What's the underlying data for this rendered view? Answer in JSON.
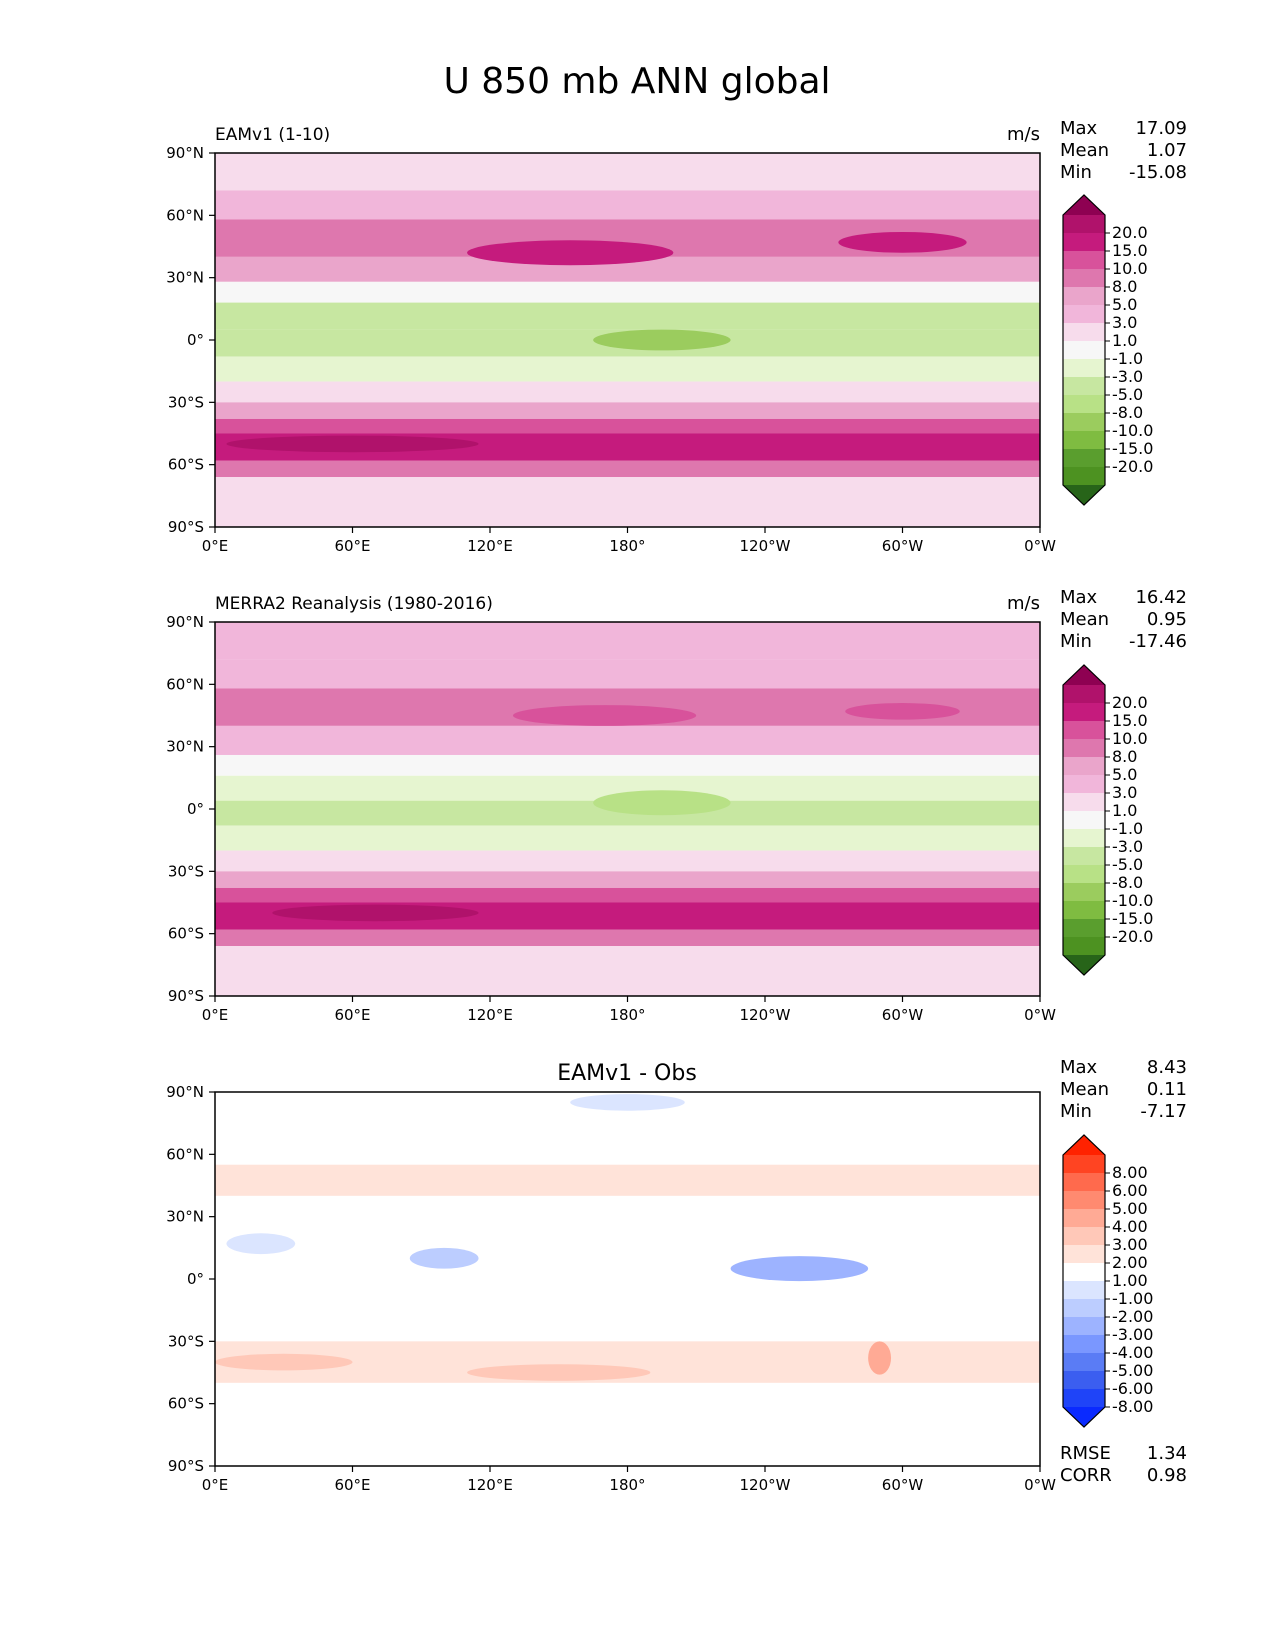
{
  "chart_data": {
    "type": "heatmap",
    "title": "U 850 mb ANN global",
    "x_ticks": [
      "0°E",
      "60°E",
      "120°E",
      "180°",
      "120°W",
      "60°W",
      "0°W"
    ],
    "y_ticks": [
      "90°N",
      "60°N",
      "30°N",
      "0°",
      "30°S",
      "60°S",
      "90°S"
    ],
    "xlim": [
      0,
      360
    ],
    "ylim": [
      -90,
      90
    ],
    "panels": [
      {
        "id": "model",
        "title": "EAMv1 (1-10)",
        "units": "m/s",
        "stats": [
          {
            "label": "Max",
            "value": "17.09"
          },
          {
            "label": "Mean",
            "value": "1.07"
          },
          {
            "label": "Min",
            "value": "-15.08"
          }
        ],
        "colorbar": {
          "levels": [
            "20.0",
            "15.0",
            "10.0",
            "8.0",
            "5.0",
            "3.0",
            "1.0",
            "-1.0",
            "-3.0",
            "-5.0",
            "-8.0",
            "-10.0",
            "-15.0",
            "-20.0"
          ],
          "colors": [
            "#8e0152",
            "#b0126b",
            "#c51b7d",
            "#d8529b",
            "#de77ae",
            "#eaa5cb",
            "#f1b6da",
            "#f7dcec",
            "#f7f7f7",
            "#e6f5d0",
            "#c7e7a1",
            "#b8e186",
            "#9bcc5e",
            "#7fbc41",
            "#5a9e2e",
            "#4d9221",
            "#276419"
          ]
        },
        "bands": [
          {
            "lat": [
              90,
              72
            ],
            "value": 0.5
          },
          {
            "lat": [
              72,
              58
            ],
            "value": 2
          },
          {
            "lat": [
              58,
              40
            ],
            "value": 6
          },
          {
            "lat": [
              40,
              28
            ],
            "value": 3
          },
          {
            "lat": [
              28,
              18
            ],
            "value": -2
          },
          {
            "lat": [
              18,
              5
            ],
            "value": -6
          },
          {
            "lat": [
              5,
              -8
            ],
            "value": -8
          },
          {
            "lat": [
              -8,
              -20
            ],
            "value": -5
          },
          {
            "lat": [
              -20,
              -30
            ],
            "value": -1
          },
          {
            "lat": [
              -30,
              -38
            ],
            "value": 4
          },
          {
            "lat": [
              -38,
              -45
            ],
            "value": 9
          },
          {
            "lat": [
              -45,
              -58
            ],
            "value": 14
          },
          {
            "lat": [
              -58,
              -66
            ],
            "value": 6
          },
          {
            "lat": [
              -66,
              -90
            ],
            "value": 0.5
          }
        ],
        "blobs": [
          {
            "lon": 155,
            "lat": 42,
            "rx": 45,
            "ry": 6,
            "value": 12
          },
          {
            "lon": 300,
            "lat": 47,
            "rx": 28,
            "ry": 5,
            "value": 14
          },
          {
            "lon": 195,
            "lat": 0,
            "rx": 30,
            "ry": 5,
            "value": -12
          },
          {
            "lon": 60,
            "lat": -50,
            "rx": 55,
            "ry": 4,
            "value": 17
          }
        ]
      },
      {
        "id": "obs",
        "title": "MERRA2 Reanalysis (1980-2016)",
        "units": "m/s",
        "stats": [
          {
            "label": "Max",
            "value": "16.42"
          },
          {
            "label": "Mean",
            "value": "0.95"
          },
          {
            "label": "Min",
            "value": "-17.46"
          }
        ],
        "colorbar": {
          "levels": [
            "20.0",
            "15.0",
            "10.0",
            "8.0",
            "5.0",
            "3.0",
            "1.0",
            "-1.0",
            "-3.0",
            "-5.0",
            "-8.0",
            "-10.0",
            "-15.0",
            "-20.0"
          ],
          "colors": [
            "#8e0152",
            "#b0126b",
            "#c51b7d",
            "#d8529b",
            "#de77ae",
            "#eaa5cb",
            "#f1b6da",
            "#f7dcec",
            "#f7f7f7",
            "#e6f5d0",
            "#c7e7a1",
            "#b8e186",
            "#9bcc5e",
            "#7fbc41",
            "#5a9e2e",
            "#4d9221",
            "#276419"
          ]
        },
        "bands": [
          {
            "lat": [
              90,
              72
            ],
            "value": 1
          },
          {
            "lat": [
              72,
              58
            ],
            "value": 2
          },
          {
            "lat": [
              58,
              40
            ],
            "value": 5
          },
          {
            "lat": [
              40,
              26
            ],
            "value": 2
          },
          {
            "lat": [
              26,
              16
            ],
            "value": -2
          },
          {
            "lat": [
              16,
              4
            ],
            "value": -5
          },
          {
            "lat": [
              4,
              -8
            ],
            "value": -7
          },
          {
            "lat": [
              -8,
              -20
            ],
            "value": -5
          },
          {
            "lat": [
              -20,
              -30
            ],
            "value": -1
          },
          {
            "lat": [
              -30,
              -38
            ],
            "value": 3
          },
          {
            "lat": [
              -38,
              -45
            ],
            "value": 8
          },
          {
            "lat": [
              -45,
              -58
            ],
            "value": 12
          },
          {
            "lat": [
              -58,
              -66
            ],
            "value": 5
          },
          {
            "lat": [
              -66,
              -90
            ],
            "value": 0.5
          }
        ],
        "blobs": [
          {
            "lon": 170,
            "lat": 45,
            "rx": 40,
            "ry": 5,
            "value": 9
          },
          {
            "lon": 300,
            "lat": 47,
            "rx": 25,
            "ry": 4,
            "value": 9
          },
          {
            "lon": 195,
            "lat": 3,
            "rx": 30,
            "ry": 6,
            "value": -10
          },
          {
            "lon": 70,
            "lat": -50,
            "rx": 45,
            "ry": 4,
            "value": 16
          }
        ]
      },
      {
        "id": "diff",
        "title": "EAMv1 - Obs",
        "units": "",
        "stats": [
          {
            "label": "Max",
            "value": "8.43"
          },
          {
            "label": "Mean",
            "value": "0.11"
          },
          {
            "label": "Min",
            "value": "-7.17"
          }
        ],
        "footer": [
          {
            "label": "RMSE",
            "value": "1.34"
          },
          {
            "label": "CORR",
            "value": "0.98"
          }
        ],
        "colorbar": {
          "levels": [
            "8.00",
            "6.00",
            "5.00",
            "4.00",
            "3.00",
            "2.00",
            "1.00",
            "-1.00",
            "-2.00",
            "-3.00",
            "-4.00",
            "-5.00",
            "-6.00",
            "-8.00"
          ],
          "colors": [
            "#ff2200",
            "#ff4422",
            "#ff6a4d",
            "#ff8a70",
            "#ffaa95",
            "#ffc8b8",
            "#ffe3d9",
            "#ffffff",
            "#dbe5ff",
            "#bccdff",
            "#9db3ff",
            "#7a97ff",
            "#5a7cf5",
            "#3b5ef0",
            "#1f44f8",
            "#0a2aff"
          ]
        },
        "bands": [
          {
            "lat": [
              90,
              55
            ],
            "value": 0
          },
          {
            "lat": [
              55,
              40
            ],
            "value": 1.5
          },
          {
            "lat": [
              40,
              25
            ],
            "value": 0
          },
          {
            "lat": [
              25,
              10
            ],
            "value": -0.5
          },
          {
            "lat": [
              10,
              -30
            ],
            "value": 0
          },
          {
            "lat": [
              -30,
              -50
            ],
            "value": 1.6
          },
          {
            "lat": [
              -50,
              -90
            ],
            "value": 0
          }
        ],
        "blobs": [
          {
            "lon": 255,
            "lat": 5,
            "rx": 30,
            "ry": 6,
            "value": -4
          },
          {
            "lon": 100,
            "lat": 10,
            "rx": 15,
            "ry": 5,
            "value": -3
          },
          {
            "lon": 20,
            "lat": 17,
            "rx": 15,
            "ry": 5,
            "value": -2
          },
          {
            "lon": 150,
            "lat": -45,
            "rx": 40,
            "ry": 4,
            "value": 2.5
          },
          {
            "lon": 290,
            "lat": -38,
            "rx": 5,
            "ry": 8,
            "value": 3.5
          },
          {
            "lon": 30,
            "lat": -40,
            "rx": 30,
            "ry": 4,
            "value": 2.2
          },
          {
            "lon": 180,
            "lat": 85,
            "rx": 25,
            "ry": 4,
            "value": -1.5
          }
        ]
      }
    ]
  }
}
